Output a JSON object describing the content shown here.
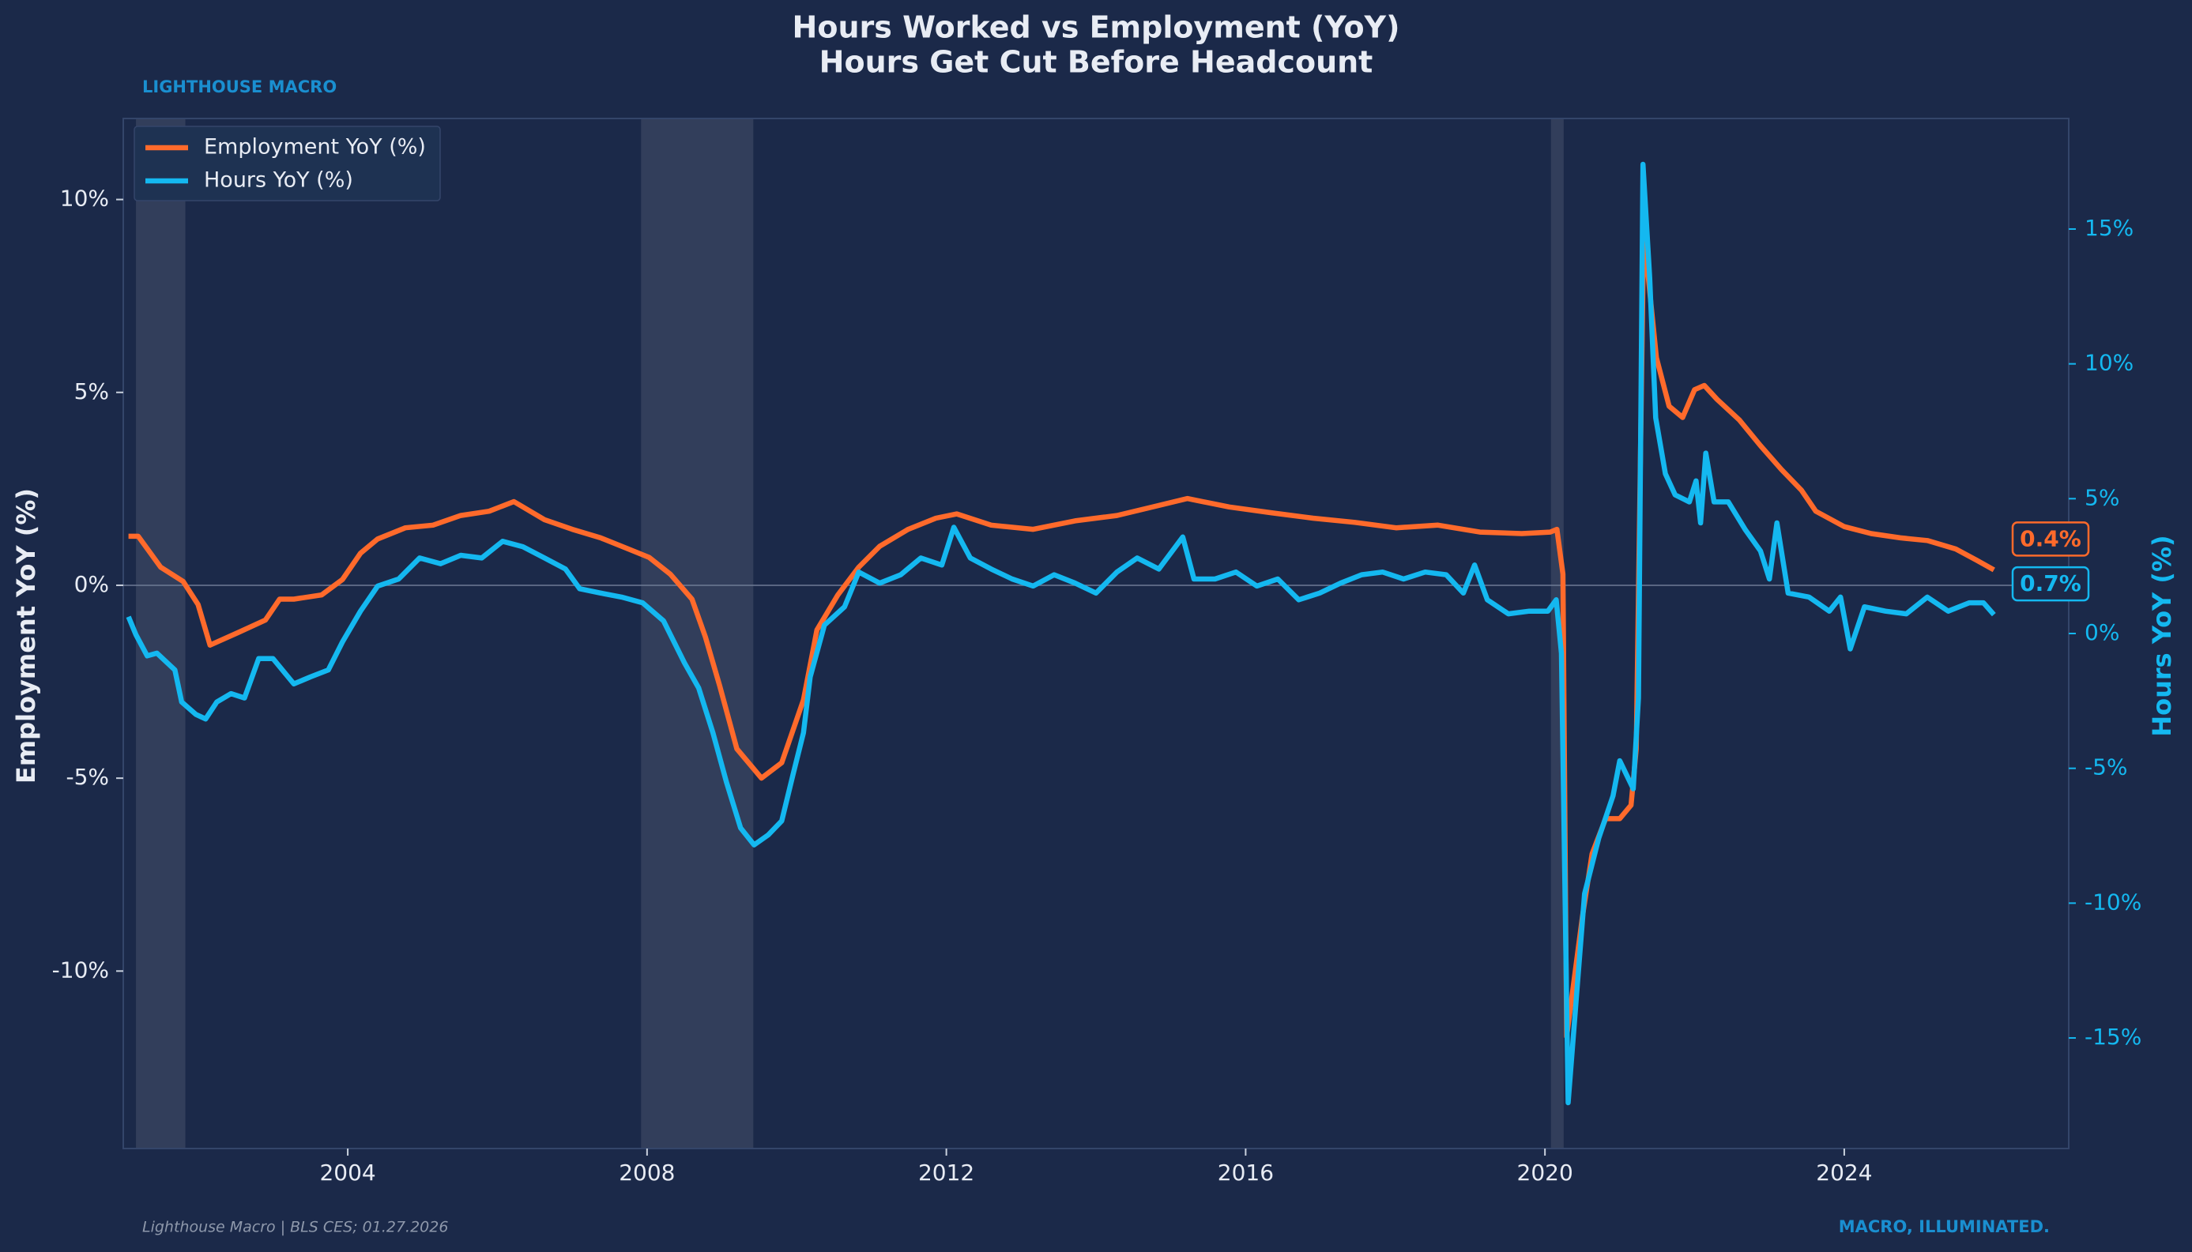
{
  "chart_data": {
    "type": "line",
    "title": "Hours Worked vs Employment (YoY)",
    "subtitle": "Hours Get Cut Before Headcount",
    "brand": "LIGHTHOUSE MACRO",
    "source": "Lighthouse Macro | BLS CES; 01.27.2026",
    "tagline": "MACRO, ILLUMINATED.",
    "ylabel": "Employment YoY (%)",
    "y2label": "Hours YoY (%)",
    "xlim": [
      2001,
      2027
    ],
    "xticks": [
      2004,
      2008,
      2012,
      2016,
      2020,
      2024
    ],
    "ylim": [
      -14.6,
      12.1
    ],
    "yticks": [
      {
        "value": -10,
        "label": "-10%"
      },
      {
        "value": -5,
        "label": "-5%"
      },
      {
        "value": 0,
        "label": "0%"
      },
      {
        "value": 5,
        "label": "5%"
      },
      {
        "value": 10,
        "label": "10%"
      }
    ],
    "y2lim": [
      -19.1,
      19.1
    ],
    "y2ticks": [
      {
        "value": -15,
        "label": "-15%"
      },
      {
        "value": -10,
        "label": "-10%"
      },
      {
        "value": -5,
        "label": "-5%"
      },
      {
        "value": 0,
        "label": "0%"
      },
      {
        "value": 5,
        "label": "5%"
      },
      {
        "value": 10,
        "label": "10%"
      },
      {
        "value": 15,
        "label": "15%"
      }
    ],
    "zero_line": true,
    "legend": "upper left",
    "shaded_periods": [
      [
        2001.17,
        2001.83
      ],
      [
        2007.92,
        2009.42
      ],
      [
        2020.08,
        2020.25
      ]
    ],
    "series": [
      {
        "name": "Employment YoY (%)",
        "color": "#ff6a2b",
        "axis": "y",
        "end_label": "0.4%",
        "x": [
          2001.07,
          2001.2,
          2001.5,
          2001.8,
          2002.0,
          2002.16,
          2002.53,
          2002.9,
          2003.09,
          2003.28,
          2003.65,
          2003.93,
          2004.17,
          2004.4,
          2004.77,
          2005.14,
          2005.51,
          2005.89,
          2006.22,
          2006.63,
          2007.0,
          2007.38,
          2007.75,
          2008.03,
          2008.31,
          2008.6,
          2008.78,
          2008.97,
          2009.2,
          2009.53,
          2009.8,
          2010.09,
          2010.27,
          2010.55,
          2010.83,
          2011.11,
          2011.49,
          2011.86,
          2012.14,
          2012.6,
          2013.16,
          2013.72,
          2014.28,
          2014.84,
          2015.22,
          2015.78,
          2016.34,
          2016.9,
          2017.46,
          2018.01,
          2018.57,
          2019.13,
          2019.69,
          2020.07,
          2020.16,
          2020.24,
          2020.29,
          2020.5,
          2020.63,
          2020.81,
          2021.0,
          2021.15,
          2021.22,
          2021.32,
          2021.49,
          2021.66,
          2021.84,
          2022.0,
          2022.13,
          2022.3,
          2022.6,
          2022.88,
          2023.16,
          2023.43,
          2023.62,
          2024.0,
          2024.36,
          2024.75,
          2025.11,
          2025.49,
          2025.77,
          2026.0
        ],
        "values": [
          1.27,
          1.27,
          0.47,
          0.1,
          -0.5,
          -1.55,
          -1.23,
          -0.9,
          -0.36,
          -0.36,
          -0.25,
          0.15,
          0.83,
          1.2,
          1.49,
          1.56,
          1.81,
          1.92,
          2.17,
          1.7,
          1.45,
          1.23,
          0.94,
          0.72,
          0.29,
          -0.36,
          -1.34,
          -2.6,
          -4.24,
          -5.0,
          -4.6,
          -2.97,
          -1.16,
          -0.25,
          0.47,
          1.01,
          1.45,
          1.74,
          1.85,
          1.56,
          1.45,
          1.67,
          1.81,
          2.07,
          2.25,
          2.03,
          1.88,
          1.74,
          1.63,
          1.49,
          1.56,
          1.38,
          1.34,
          1.38,
          1.45,
          0.29,
          -11.7,
          -8.6,
          -6.96,
          -6.05,
          -6.05,
          -5.7,
          -4.24,
          9.17,
          5.9,
          4.64,
          4.35,
          5.07,
          5.18,
          4.82,
          4.28,
          3.62,
          3.0,
          2.46,
          1.92,
          1.52,
          1.34,
          1.23,
          1.16,
          0.94,
          0.65,
          0.4
        ]
      },
      {
        "name": "Hours YoY (%)",
        "color": "#14b8f0",
        "axis": "y2",
        "end_label": "0.7%",
        "x": [
          2001.07,
          2001.17,
          2001.32,
          2001.45,
          2001.69,
          2001.78,
          2001.97,
          2002.1,
          2002.25,
          2002.44,
          2002.62,
          2002.81,
          2003.0,
          2003.28,
          2003.5,
          2003.74,
          2003.93,
          2004.17,
          2004.4,
          2004.68,
          2004.96,
          2005.24,
          2005.51,
          2005.79,
          2006.07,
          2006.34,
          2006.63,
          2006.91,
          2007.1,
          2007.38,
          2007.66,
          2007.94,
          2008.22,
          2008.5,
          2008.69,
          2008.88,
          2009.06,
          2009.25,
          2009.43,
          2009.62,
          2009.8,
          2009.95,
          2010.09,
          2010.18,
          2010.37,
          2010.64,
          2010.83,
          2011.11,
          2011.39,
          2011.66,
          2011.94,
          2012.1,
          2012.32,
          2012.6,
          2012.88,
          2013.16,
          2013.44,
          2013.72,
          2014.0,
          2014.28,
          2014.55,
          2014.84,
          2015.16,
          2015.31,
          2015.59,
          2015.87,
          2016.15,
          2016.43,
          2016.71,
          2016.99,
          2017.27,
          2017.55,
          2017.83,
          2018.11,
          2018.4,
          2018.68,
          2018.91,
          2019.06,
          2019.23,
          2019.51,
          2019.79,
          2020.04,
          2020.15,
          2020.22,
          2020.31,
          2020.44,
          2020.53,
          2020.72,
          2020.91,
          2021.0,
          2021.09,
          2021.18,
          2021.25,
          2021.31,
          2021.4,
          2021.48,
          2021.61,
          2021.74,
          2021.93,
          2022.02,
          2022.08,
          2022.15,
          2022.26,
          2022.45,
          2022.68,
          2022.88,
          2023.0,
          2023.1,
          2023.25,
          2023.53,
          2023.8,
          2023.95,
          2024.08,
          2024.27,
          2024.55,
          2024.83,
          2025.11,
          2025.39,
          2025.67,
          2025.86,
          2026.0
        ],
        "values": [
          0.62,
          -0.05,
          -0.83,
          -0.73,
          -1.35,
          -2.54,
          -3.0,
          -3.17,
          -2.54,
          -2.23,
          -2.39,
          -0.93,
          -0.93,
          -1.87,
          -1.61,
          -1.35,
          -0.31,
          0.83,
          1.76,
          2.02,
          2.8,
          2.59,
          2.9,
          2.8,
          3.42,
          3.22,
          2.8,
          2.39,
          1.66,
          1.5,
          1.35,
          1.14,
          0.47,
          -1.09,
          -2.02,
          -3.68,
          -5.5,
          -7.21,
          -7.84,
          -7.47,
          -6.95,
          -5.24,
          -3.68,
          -1.61,
          0.31,
          0.99,
          2.28,
          1.87,
          2.18,
          2.8,
          2.54,
          3.94,
          2.8,
          2.39,
          2.02,
          1.76,
          2.18,
          1.87,
          1.5,
          2.28,
          2.8,
          2.39,
          3.58,
          2.02,
          2.02,
          2.28,
          1.76,
          2.02,
          1.25,
          1.5,
          1.87,
          2.18,
          2.28,
          2.02,
          2.28,
          2.18,
          1.5,
          2.54,
          1.25,
          0.73,
          0.83,
          0.83,
          1.25,
          -0.73,
          -17.4,
          -12.8,
          -9.65,
          -7.58,
          -6.02,
          -4.72,
          -5.24,
          -5.76,
          -2.39,
          17.4,
          13.2,
          8.0,
          5.92,
          5.14,
          4.88,
          5.66,
          4.1,
          6.69,
          4.88,
          4.88,
          3.84,
          3.06,
          2.02,
          4.1,
          1.5,
          1.35,
          0.83,
          1.35,
          -0.57,
          0.99,
          0.83,
          0.73,
          1.35,
          0.83,
          1.14,
          1.14,
          0.7
        ]
      }
    ]
  }
}
